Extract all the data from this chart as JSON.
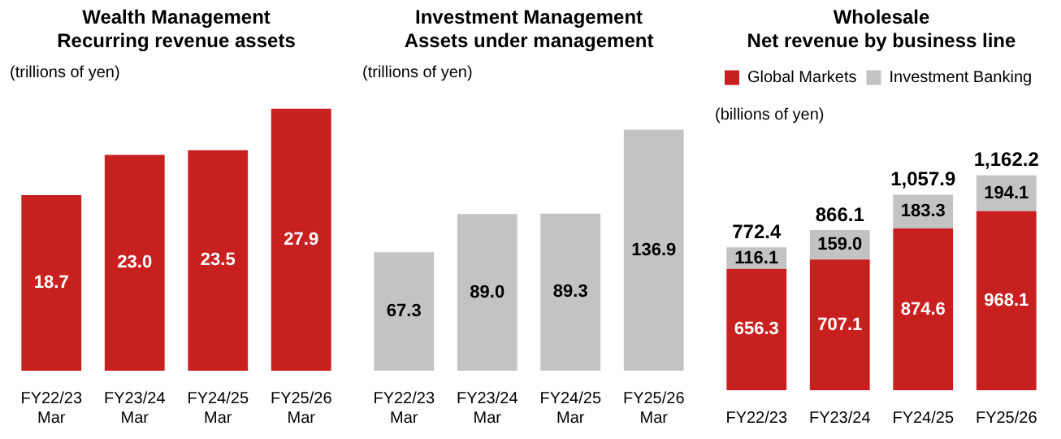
{
  "chart_data": [
    {
      "type": "bar",
      "title": "Wealth Management",
      "subtitle": "Recurring revenue assets",
      "annotations": [
        "(trillions of yen)"
      ],
      "categories": [
        "FY22/23 Mar",
        "FY23/24 Mar",
        "FY24/25 Mar",
        "FY25/26 Mar"
      ],
      "series": [
        {
          "color": "#c8201f",
          "values": [
            18.7,
            23.0,
            23.5,
            27.9
          ],
          "value_labels": [
            "18.7",
            "23.0",
            "23.5",
            "27.9"
          ]
        }
      ]
    },
    {
      "type": "bar",
      "title": "Investment Management",
      "subtitle": "Assets under management",
      "annotations": [
        "(trillions of yen)"
      ],
      "categories": [
        "FY22/23 Mar",
        "FY23/24 Mar",
        "FY24/25 Mar",
        "FY25/26 Mar"
      ],
      "series": [
        {
          "color": "#c3c3c3",
          "values": [
            67.3,
            89.0,
            89.3,
            136.9
          ],
          "value_labels": [
            "67.3",
            "89.0",
            "89.3",
            "136.9"
          ]
        }
      ]
    },
    {
      "type": "bar",
      "title": "Wholesale",
      "subtitle": "Net revenue by business line",
      "annotations": [
        "(billions of yen)"
      ],
      "categories": [
        "FY22/23",
        "FY23/24",
        "FY24/25",
        "FY25/26"
      ],
      "stacked": true,
      "legend": "top left",
      "series": [
        {
          "name": "Global Markets",
          "color": "#c8201f",
          "values": [
            656.3,
            707.1,
            874.6,
            968.1
          ],
          "value_labels": [
            "656.3",
            "707.1",
            "874.6",
            "968.1"
          ]
        },
        {
          "name": "Investment Banking",
          "color": "#c3c3c3",
          "values": [
            116.1,
            159.0,
            183.3,
            194.1
          ],
          "value_labels": [
            "116.1",
            "159.0",
            "183.3",
            "194.1"
          ]
        }
      ],
      "totals": [
        "772.4",
        "866.1",
        "1,057.9",
        "1,162.2"
      ]
    }
  ]
}
